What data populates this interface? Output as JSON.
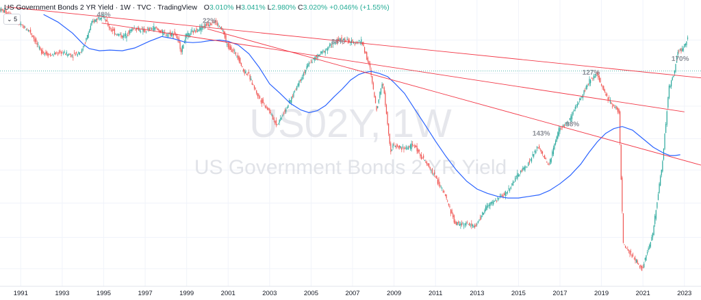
{
  "header": {
    "title": "US Government Bonds 2 YR Yield",
    "interval": "1W",
    "source": "TVC",
    "platform": "TradingView",
    "open_label": "O",
    "open": "3.010%",
    "high_label": "H",
    "high": "3.041%",
    "low_label": "L",
    "low": "2.980%",
    "close_label": "C",
    "close": "3.020%",
    "change": "+0.046% (+1.55%)"
  },
  "collapse_button": {
    "label": "5",
    "icon": "chevron-down-icon"
  },
  "watermark": {
    "symbol": "US02Y, 1W",
    "name": "US Government Bonds 2 YR Yield"
  },
  "colors": {
    "up": "#26a69a",
    "down": "#ef5350",
    "ma": "#2962ff",
    "trendline": "#f23645",
    "label": "#8a8d96",
    "axis_text": "#131722",
    "current_price_line": "#26a69a"
  },
  "chart_data": {
    "type": "line",
    "title": "US Government Bonds 2 YR Yield",
    "xlabel": "",
    "ylabel": "",
    "x_ticks": [
      "1991",
      "1993",
      "1995",
      "1997",
      "1999",
      "2001",
      "2003",
      "2005",
      "2007",
      "2009",
      "2011",
      "2013",
      "2015",
      "2017",
      "2019",
      "2021",
      "2023"
    ],
    "xlim": [
      1990.0,
      2023.8
    ],
    "y_scale": "log",
    "ylim": [
      0.09,
      8.6
    ],
    "series": [
      {
        "style": "candles",
        "x": [
          1990.0,
          1990.5,
          1991.0,
          1991.5,
          1992.0,
          1992.5,
          1993.0,
          1993.5,
          1994.0,
          1994.5,
          1995.0,
          1995.3,
          1995.6,
          1996.0,
          1996.5,
          1997.0,
          1997.5,
          1998.0,
          1998.5,
          1998.8,
          1999.0,
          1999.5,
          2000.0,
          2000.4,
          2000.8,
          2001.0,
          2001.5,
          2001.8,
          2002.0,
          2002.5,
          2003.0,
          2003.4,
          2003.8,
          2004.0,
          2004.5,
          2005.0,
          2005.5,
          2006.0,
          2006.5,
          2007.0,
          2007.5,
          2007.9,
          2008.2,
          2008.5,
          2008.9,
          2009.0,
          2009.5,
          2010.0,
          2010.5,
          2011.0,
          2011.5,
          2012.0,
          2012.5,
          2013.0,
          2013.5,
          2014.0,
          2014.5,
          2015.0,
          2015.5,
          2016.0,
          2016.5,
          2017.0,
          2017.5,
          2018.0,
          2018.5,
          2018.85,
          2019.0,
          2019.5,
          2019.9,
          2020.1,
          2020.3,
          2020.5,
          2021.0,
          2021.5,
          2022.0,
          2022.3,
          2022.5,
          2022.75,
          2022.95,
          2023.1,
          2023.2
        ],
        "y": [
          8.3,
          7.7,
          6.4,
          5.8,
          4.2,
          3.9,
          4.1,
          3.9,
          4.2,
          6.7,
          7.6,
          6.2,
          5.6,
          5.3,
          6.1,
          5.8,
          6.1,
          5.5,
          5.6,
          4.2,
          5.3,
          5.9,
          6.4,
          6.8,
          5.8,
          4.6,
          3.9,
          3.0,
          2.9,
          2.0,
          1.6,
          1.25,
          1.6,
          1.8,
          2.6,
          3.5,
          4.0,
          4.6,
          5.1,
          4.8,
          4.9,
          3.1,
          1.6,
          2.6,
          0.8,
          0.9,
          0.85,
          0.9,
          0.7,
          0.55,
          0.4,
          0.25,
          0.25,
          0.24,
          0.33,
          0.37,
          0.42,
          0.55,
          0.66,
          0.88,
          0.64,
          1.16,
          1.33,
          1.9,
          2.6,
          2.95,
          2.45,
          1.8,
          1.55,
          0.18,
          0.16,
          0.15,
          0.12,
          0.2,
          0.7,
          2.3,
          2.7,
          4.2,
          4.3,
          4.7,
          5.0
        ]
      },
      {
        "style": "moving-average",
        "x": [
          1992.1,
          1992.8,
          1993.5,
          1994.0,
          1994.3,
          1994.8,
          1995.3,
          1995.9,
          1996.5,
          1997.2,
          1997.8,
          1998.4,
          1998.9,
          1999.3,
          1999.7,
          2000.1,
          2000.6,
          2001.0,
          2001.5,
          2002.0,
          2002.5,
          2003.0,
          2003.5,
          2004.0,
          2004.5,
          2004.9,
          2005.3,
          2005.7,
          2006.1,
          2006.5,
          2006.9,
          2007.3,
          2007.6,
          2007.9,
          2008.3,
          2008.7,
          2009.0,
          2009.5,
          2010.0,
          2010.5,
          2011.0,
          2011.5,
          2012.0,
          2012.5,
          2013.0,
          2013.5,
          2014.0,
          2014.5,
          2015.0,
          2015.5,
          2016.0,
          2016.5,
          2017.0,
          2017.5,
          2018.0,
          2018.4,
          2018.8,
          2019.2,
          2019.6,
          2020.0,
          2020.5,
          2021.0,
          2021.5,
          2022.0,
          2022.3,
          2022.55,
          2022.8
        ],
        "y": [
          7.6,
          6.7,
          5.6,
          4.7,
          4.35,
          4.2,
          4.25,
          4.2,
          4.4,
          4.9,
          5.3,
          5.1,
          4.85,
          4.8,
          4.85,
          4.95,
          5.0,
          4.9,
          4.6,
          4.0,
          3.2,
          2.45,
          2.1,
          1.78,
          1.6,
          1.53,
          1.58,
          1.72,
          1.98,
          2.25,
          2.6,
          2.85,
          2.95,
          3.0,
          2.9,
          2.75,
          2.5,
          2.1,
          1.62,
          1.25,
          0.96,
          0.75,
          0.6,
          0.5,
          0.44,
          0.41,
          0.39,
          0.38,
          0.38,
          0.39,
          0.4,
          0.43,
          0.48,
          0.55,
          0.66,
          0.8,
          0.95,
          1.09,
          1.18,
          1.22,
          1.15,
          1.0,
          0.87,
          0.79,
          0.76,
          0.76,
          0.77
        ]
      },
      {
        "style": "trendline",
        "x": [
          1990.3,
          2023.8
        ],
        "y": [
          8.6,
          2.7
        ]
      },
      {
        "style": "trendline",
        "x": [
          1994.9,
          2023.0
        ],
        "y": [
          6.6,
          1.55
        ]
      },
      {
        "style": "trendline",
        "x": [
          2000.0,
          2023.8
        ],
        "y": [
          6.0,
          0.65
        ]
      }
    ],
    "annotations": [
      {
        "text": "48%",
        "x": 1995.0,
        "y": 7.3
      },
      {
        "text": "22%",
        "x": 2000.1,
        "y": 6.6
      },
      {
        "text": "86%",
        "x": 2006.3,
        "y": 4.7
      },
      {
        "text": "143%",
        "x": 2016.1,
        "y": 1.05
      },
      {
        "text": "98%",
        "x": 2017.6,
        "y": 1.22
      },
      {
        "text": "127%",
        "x": 2018.5,
        "y": 2.85
      },
      {
        "text": "170%",
        "x": 2022.8,
        "y": 3.55
      }
    ],
    "current_value": 3.02
  }
}
